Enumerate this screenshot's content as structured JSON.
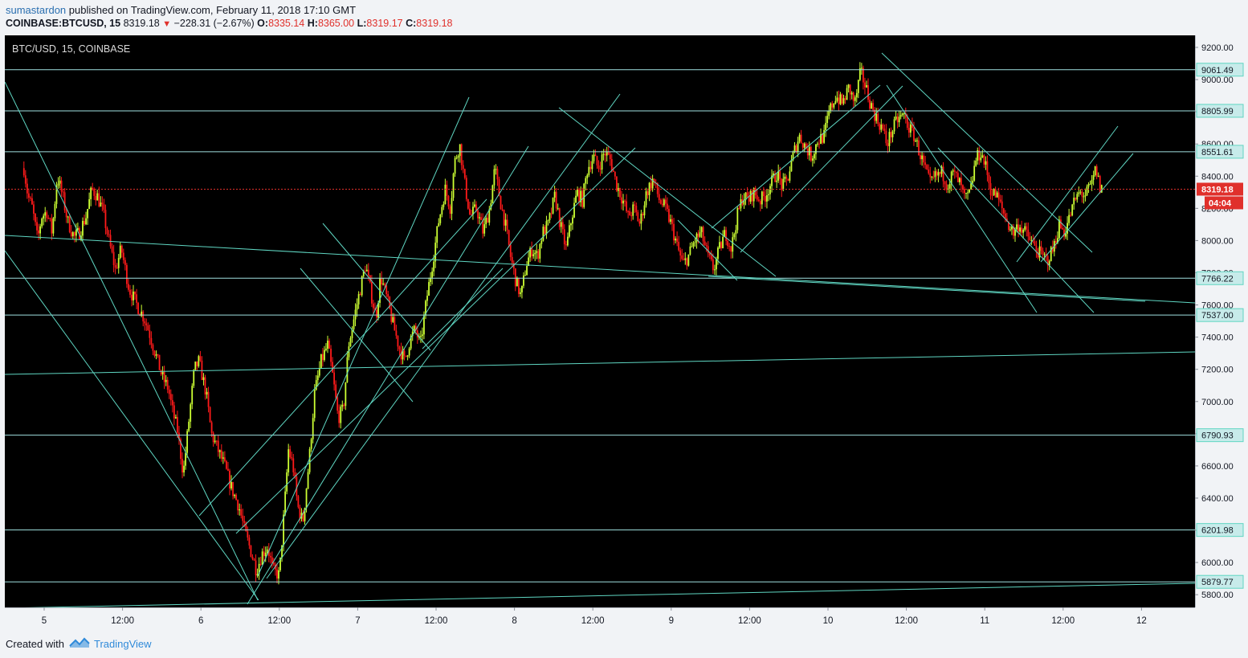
{
  "header": {
    "author": "sumastardon",
    "published_text": "published on TradingView.com, February 11, 2018 17:10 GMT",
    "symbol": "COINBASE:BTCUSD, 15",
    "last": "8319.18",
    "change": "−228.31 (−2.67%)",
    "open_label": "O:",
    "open": "8335.14",
    "high_label": "H:",
    "high": "8365.00",
    "low_label": "L:",
    "low": "8319.17",
    "close_label": "C:",
    "close": "8319.18"
  },
  "chart_title": "BTC/USD, 15, COINBASE",
  "footer": {
    "created_with": "Created with",
    "brand": "TradingView"
  },
  "colors": {
    "background": "#000000",
    "up": "#ccff33",
    "down": "#ff1a1a",
    "drawing": "#5fd6c2",
    "level_line": "#9fe0df",
    "price_line": "#e0302b"
  },
  "chart_data": {
    "type": "candlestick",
    "title": "BTC/USD, 15, COINBASE",
    "ylim": [
      5700,
      9300
    ],
    "y_ticks": [
      "5800.00",
      "6000.00",
      "6200.00",
      "6400.00",
      "6600.00",
      "6800.00",
      "7000.00",
      "7200.00",
      "7400.00",
      "7600.00",
      "7800.00",
      "8000.00",
      "8200.00",
      "8400.00",
      "8600.00",
      "8800.00",
      "9000.00",
      "9200.00"
    ],
    "x_ticks": [
      "5",
      "12:00",
      "6",
      "12:00",
      "7",
      "12:00",
      "8",
      "12:00",
      "9",
      "12:00",
      "10",
      "12:00",
      "11",
      "12:00",
      "12"
    ],
    "x_tick_hours": [
      24,
      36,
      48,
      60,
      72,
      84,
      96,
      108,
      120,
      132,
      144,
      156,
      168,
      180,
      192
    ],
    "x_range_hours": [
      20.9,
      211
    ],
    "levels": [
      9061.49,
      8805.99,
      8551.61,
      8319.18,
      7766.22,
      7537.0,
      6790.93,
      6201.98,
      5879.77
    ],
    "current_price": "8319.18",
    "countdown": "04:04",
    "path": [
      [
        20.9,
        8450
      ],
      [
        21.5,
        8280
      ],
      [
        22.2,
        8200
      ],
      [
        23.0,
        8000
      ],
      [
        23.6,
        8150
      ],
      [
        24.4,
        8180
      ],
      [
        25.2,
        8050
      ],
      [
        26.0,
        8400
      ],
      [
        26.8,
        8280
      ],
      [
        27.6,
        8120
      ],
      [
        28.6,
        8020
      ],
      [
        29.4,
        8050
      ],
      [
        30.4,
        8150
      ],
      [
        31.3,
        8320
      ],
      [
        32.1,
        8280
      ],
      [
        33.0,
        8180
      ],
      [
        34.0,
        7980
      ],
      [
        34.9,
        7820
      ],
      [
        35.8,
        7950
      ],
      [
        37.0,
        7700
      ],
      [
        38.2,
        7600
      ],
      [
        39.3,
        7520
      ],
      [
        40.0,
        7440
      ],
      [
        41.0,
        7300
      ],
      [
        42.1,
        7150
      ],
      [
        43.0,
        7080
      ],
      [
        43.6,
        6950
      ],
      [
        44.4,
        6820
      ],
      [
        45.3,
        6550
      ],
      [
        46.2,
        6900
      ],
      [
        47.0,
        7200
      ],
      [
        47.7,
        7250
      ],
      [
        48.8,
        7050
      ],
      [
        49.6,
        6800
      ],
      [
        50.6,
        6700
      ],
      [
        51.6,
        6600
      ],
      [
        52.7,
        6460
      ],
      [
        53.8,
        6350
      ],
      [
        54.8,
        6180
      ],
      [
        55.8,
        6050
      ],
      [
        56.5,
        5950
      ],
      [
        57.3,
        6050
      ],
      [
        58.2,
        6100
      ],
      [
        59.0,
        5950
      ],
      [
        60.0,
        5920
      ],
      [
        60.8,
        6350
      ],
      [
        61.4,
        6700
      ],
      [
        62.1,
        6600
      ],
      [
        62.8,
        6350
      ],
      [
        63.6,
        6250
      ],
      [
        64.6,
        6650
      ],
      [
        65.4,
        7050
      ],
      [
        66.4,
        7250
      ],
      [
        67.4,
        7350
      ],
      [
        68.2,
        7150
      ],
      [
        69.0,
        6900
      ],
      [
        69.8,
        6950
      ],
      [
        70.6,
        7350
      ],
      [
        71.6,
        7550
      ],
      [
        72.5,
        7720
      ],
      [
        73.2,
        7850
      ],
      [
        74.0,
        7680
      ],
      [
        74.8,
        7520
      ],
      [
        75.5,
        7780
      ],
      [
        76.4,
        7650
      ],
      [
        77.4,
        7480
      ],
      [
        78.4,
        7330
      ],
      [
        79.2,
        7250
      ],
      [
        80.0,
        7380
      ],
      [
        80.8,
        7450
      ],
      [
        81.6,
        7350
      ],
      [
        82.6,
        7650
      ],
      [
        83.6,
        7900
      ],
      [
        84.4,
        8120
      ],
      [
        85.4,
        8320
      ],
      [
        86.2,
        8200
      ],
      [
        86.8,
        8480
      ],
      [
        87.6,
        8600
      ],
      [
        88.4,
        8350
      ],
      [
        89.2,
        8150
      ],
      [
        90.2,
        8200
      ],
      [
        91.2,
        8050
      ],
      [
        92.2,
        8200
      ],
      [
        93.0,
        8450
      ],
      [
        93.8,
        8250
      ],
      [
        94.6,
        8100
      ],
      [
        95.4,
        7900
      ],
      [
        96.2,
        7750
      ],
      [
        97.0,
        7650
      ],
      [
        97.8,
        7850
      ],
      [
        98.7,
        7950
      ],
      [
        99.5,
        7900
      ],
      [
        100.3,
        8050
      ],
      [
        101.2,
        8100
      ],
      [
        102.2,
        8280
      ],
      [
        103.0,
        8100
      ],
      [
        103.9,
        7950
      ],
      [
        104.8,
        8150
      ],
      [
        105.6,
        8300
      ],
      [
        106.4,
        8250
      ],
      [
        107.2,
        8450
      ],
      [
        108.1,
        8520
      ],
      [
        108.8,
        8450
      ],
      [
        109.8,
        8550
      ],
      [
        110.7,
        8500
      ],
      [
        111.6,
        8350
      ],
      [
        112.6,
        8250
      ],
      [
        113.4,
        8150
      ],
      [
        114.3,
        8200
      ],
      [
        115.2,
        8100
      ],
      [
        116.2,
        8300
      ],
      [
        117.2,
        8380
      ],
      [
        118.2,
        8250
      ],
      [
        119.1,
        8200
      ],
      [
        120.0,
        8100
      ],
      [
        121.0,
        7950
      ],
      [
        121.8,
        7850
      ],
      [
        122.6,
        7900
      ],
      [
        123.6,
        8000
      ],
      [
        124.6,
        8050
      ],
      [
        125.6,
        7900
      ],
      [
        126.5,
        7820
      ],
      [
        127.4,
        7950
      ],
      [
        128.3,
        8050
      ],
      [
        129.2,
        7950
      ],
      [
        130.1,
        8150
      ],
      [
        131.0,
        8280
      ],
      [
        131.8,
        8250
      ],
      [
        132.6,
        8300
      ],
      [
        133.6,
        8250
      ],
      [
        134.4,
        8280
      ],
      [
        135.2,
        8350
      ],
      [
        136.2,
        8420
      ],
      [
        137.0,
        8330
      ],
      [
        137.8,
        8380
      ],
      [
        138.8,
        8550
      ],
      [
        139.6,
        8650
      ],
      [
        140.6,
        8580
      ],
      [
        141.5,
        8520
      ],
      [
        142.4,
        8620
      ],
      [
        143.4,
        8650
      ],
      [
        144.2,
        8800
      ],
      [
        145.2,
        8900
      ],
      [
        146.2,
        8850
      ],
      [
        147.2,
        8950
      ],
      [
        148.1,
        8850
      ],
      [
        149.0,
        9050
      ],
      [
        149.8,
        8950
      ],
      [
        150.5,
        8850
      ],
      [
        151.5,
        8750
      ],
      [
        152.3,
        8700
      ],
      [
        153.0,
        8600
      ],
      [
        153.8,
        8680
      ],
      [
        154.6,
        8750
      ],
      [
        155.6,
        8780
      ],
      [
        156.4,
        8700
      ],
      [
        157.2,
        8650
      ],
      [
        158.0,
        8550
      ],
      [
        158.8,
        8450
      ],
      [
        159.6,
        8350
      ],
      [
        160.5,
        8400
      ],
      [
        161.5,
        8420
      ],
      [
        162.3,
        8350
      ],
      [
        163.2,
        8420
      ],
      [
        164.2,
        8350
      ],
      [
        165.0,
        8250
      ],
      [
        165.8,
        8300
      ],
      [
        166.6,
        8500
      ],
      [
        167.4,
        8550
      ],
      [
        168.2,
        8450
      ],
      [
        169.0,
        8300
      ],
      [
        169.8,
        8280
      ],
      [
        170.6,
        8200
      ],
      [
        171.6,
        8100
      ],
      [
        172.4,
        8050
      ],
      [
        173.2,
        8100
      ],
      [
        174.2,
        8050
      ],
      [
        175.0,
        8000
      ],
      [
        175.8,
        7950
      ],
      [
        176.8,
        7900
      ],
      [
        177.6,
        7880
      ],
      [
        178.5,
        7950
      ],
      [
        179.4,
        8100
      ],
      [
        180.2,
        8050
      ],
      [
        181.0,
        8150
      ],
      [
        181.8,
        8250
      ],
      [
        182.6,
        8300
      ],
      [
        183.4,
        8280
      ],
      [
        184.4,
        8350
      ],
      [
        185.0,
        8450
      ],
      [
        185.6,
        8330
      ],
      [
        186.1,
        8319
      ]
    ]
  }
}
